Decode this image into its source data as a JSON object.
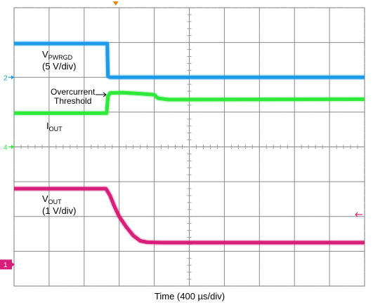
{
  "chart_data": {
    "type": "line",
    "title": "",
    "xlabel": "Time (400 µs/div)",
    "ylabel": "",
    "grid": true,
    "divisions": {
      "x": 10,
      "y": 8
    },
    "x_range_div": [
      0,
      10
    ],
    "y_range_div": [
      0,
      8
    ],
    "trigger_position_div": 2.9,
    "series": [
      {
        "name": "VPWRGD",
        "color": "#1e9be8",
        "ground_marker_label": "2",
        "points_div": [
          [
            0,
            6.97
          ],
          [
            2.66,
            6.97
          ],
          [
            2.68,
            6.03
          ],
          [
            2.74,
            6.0
          ],
          [
            10,
            6.0
          ]
        ]
      },
      {
        "name": "IOUT",
        "color": "#2ee83a",
        "ground_marker_label": "4",
        "points_div": [
          [
            0,
            4.97
          ],
          [
            2.64,
            4.97
          ],
          [
            2.68,
            5.45
          ],
          [
            2.74,
            5.55
          ],
          [
            3.1,
            5.56
          ],
          [
            3.6,
            5.53
          ],
          [
            4.0,
            5.5
          ],
          [
            4.1,
            5.4
          ],
          [
            4.4,
            5.36
          ],
          [
            10,
            5.37
          ]
        ]
      },
      {
        "name": "VOUT",
        "color": "#d81e78",
        "ground_marker_label": "1",
        "points_div": [
          [
            0,
            2.8
          ],
          [
            2.62,
            2.8
          ],
          [
            2.74,
            2.6
          ],
          [
            2.86,
            2.3
          ],
          [
            3.0,
            2.0
          ],
          [
            3.2,
            1.7
          ],
          [
            3.4,
            1.45
          ],
          [
            3.6,
            1.3
          ],
          [
            3.8,
            1.26
          ],
          [
            4.2,
            1.25
          ],
          [
            10,
            1.25
          ]
        ]
      }
    ],
    "annotations": [
      {
        "lines": [
          "V",
          "PWRGD"
        ],
        "text2": "(5 V/div)"
      },
      {
        "lines": [
          "Overcurrent",
          "Threshold"
        ]
      },
      {
        "lines": [
          "I",
          "OUT"
        ]
      },
      {
        "lines": [
          "V",
          "OUT"
        ],
        "text2": "(1 V/div)"
      }
    ]
  }
}
